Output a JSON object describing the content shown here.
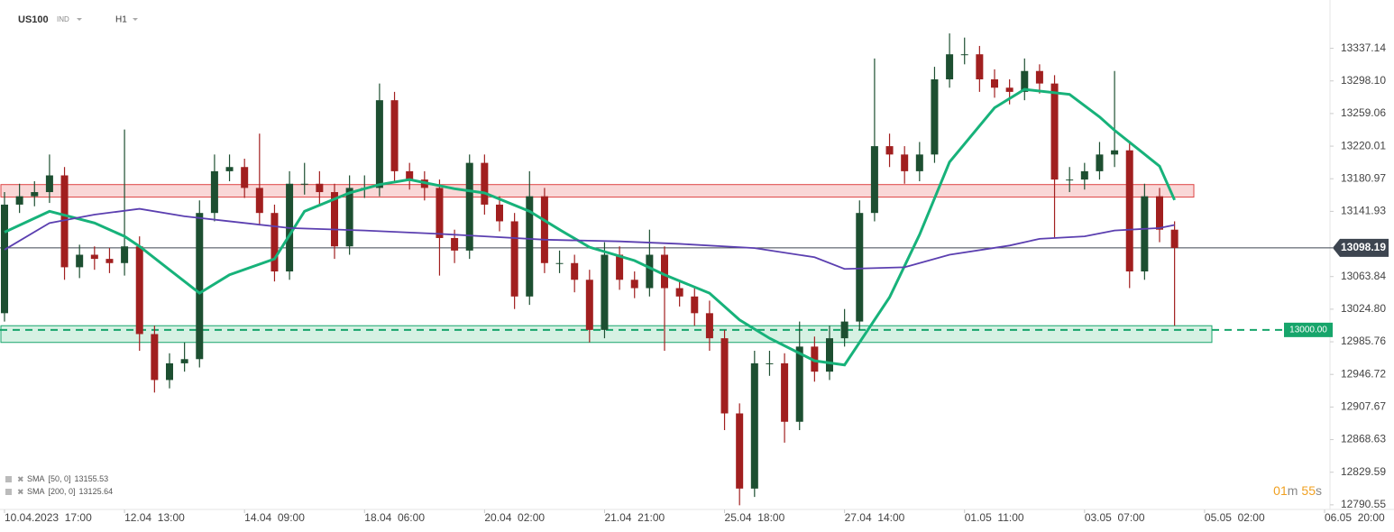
{
  "header": {
    "symbol": "US100",
    "market": "IND",
    "interval": "H1"
  },
  "chart_data": {
    "type": "candlestick",
    "candles": {
      "open": [
        13020,
        13150,
        13160,
        13165,
        13185,
        13075,
        13090,
        13085,
        13080,
        13100,
        12995,
        12940,
        12960,
        12965,
        13140,
        13190,
        13195,
        13170,
        13140,
        13070,
        13175,
        13175,
        13165,
        13100,
        13170,
        13170,
        13275,
        13190,
        13180,
        13170,
        13110,
        13095,
        13200,
        13150,
        13130,
        13040,
        13160,
        13080,
        13080,
        13060,
        13000,
        13090,
        13060,
        13050,
        13090,
        13050,
        13040,
        13020,
        12990,
        12900,
        12810,
        12960,
        12960,
        12890,
        12980,
        12950,
        12990,
        13010,
        13140,
        13220,
        13210,
        13190,
        13210,
        13300,
        13330,
        13330,
        13300,
        13290,
        13285,
        13310,
        13295,
        13180,
        13180,
        13190,
        13210,
        13215,
        13070,
        13160,
        13120
      ],
      "high": [
        13165,
        13175,
        13178,
        13210,
        13195,
        13102,
        13100,
        13098,
        13240,
        13112,
        13005,
        12972,
        12985,
        13155,
        13210,
        13210,
        13205,
        13235,
        13150,
        13190,
        13200,
        13190,
        13175,
        13185,
        13185,
        13295,
        13285,
        13200,
        13190,
        13180,
        13120,
        13210,
        13210,
        13160,
        13140,
        13190,
        13170,
        13095,
        13090,
        13072,
        13105,
        13100,
        13070,
        13120,
        13100,
        13060,
        13050,
        13035,
        13000,
        12912,
        12975,
        12975,
        12972,
        13010,
        12992,
        13005,
        13025,
        13155,
        13325,
        13235,
        13220,
        13225,
        13315,
        13355,
        13350,
        13340,
        13312,
        13300,
        13325,
        13318,
        13305,
        13195,
        13200,
        13225,
        13310,
        13225,
        13175,
        13170,
        13130
      ],
      "low": [
        13010,
        13140,
        13148,
        13152,
        13060,
        13062,
        13072,
        13068,
        13065,
        12975,
        12925,
        12930,
        12950,
        12955,
        13130,
        13178,
        13158,
        13125,
        13058,
        13060,
        13162,
        13150,
        13085,
        13090,
        13158,
        13160,
        13178,
        13168,
        13155,
        13065,
        13080,
        13085,
        13138,
        13118,
        13025,
        13030,
        13068,
        13068,
        13045,
        12985,
        12990,
        13048,
        13038,
        13040,
        12975,
        13028,
        13005,
        12975,
        12880,
        12790,
        12800,
        12945,
        12865,
        12880,
        12938,
        12940,
        12980,
        13000,
        13130,
        13195,
        13175,
        13178,
        13200,
        13290,
        13318,
        13285,
        13278,
        13270,
        13275,
        13283,
        13110,
        13165,
        13168,
        13180,
        13195,
        13050,
        13060,
        13105,
        13005
      ],
      "close": [
        13150,
        13160,
        13165,
        13185,
        13075,
        13090,
        13085,
        13080,
        13100,
        12995,
        12940,
        12960,
        12965,
        13140,
        13190,
        13195,
        13170,
        13140,
        13070,
        13175,
        13175,
        13165,
        13100,
        13170,
        13170,
        13275,
        13190,
        13180,
        13170,
        13110,
        13095,
        13200,
        13150,
        13130,
        13040,
        13160,
        13080,
        13080,
        13060,
        13000,
        13090,
        13060,
        13050,
        13090,
        13050,
        13040,
        13020,
        12990,
        12900,
        12810,
        12960,
        12960,
        12890,
        12980,
        12950,
        12990,
        13010,
        13140,
        13220,
        13210,
        13190,
        13210,
        13300,
        13330,
        13330,
        13300,
        13290,
        13285,
        13310,
        13295,
        13180,
        13180,
        13190,
        13210,
        13215,
        13070,
        13160,
        13120,
        13098.19
      ],
      "up_color": "#1d4f31",
      "down_color": "#a11f1f"
    },
    "indicators": [
      {
        "label": "SMA",
        "params": "[50, 0]",
        "value": 13155.53,
        "color": "#17b27a",
        "x": [
          0,
          3,
          6,
          8,
          9,
          11,
          13,
          15,
          18,
          20,
          23,
          25,
          27,
          30,
          32,
          35,
          37,
          39,
          42,
          44,
          47,
          49,
          51,
          54,
          56,
          59,
          61,
          63,
          66,
          68,
          71,
          73,
          74,
          77,
          78
        ],
        "values": [
          13117,
          13142,
          13128,
          13112,
          13100,
          13072,
          13044,
          13066,
          13085,
          13142,
          13164,
          13174,
          13180,
          13169,
          13164,
          13142,
          13120,
          13099,
          13083,
          13066,
          13044,
          13012,
          12990,
          12963,
          12958,
          13039,
          13114,
          13201,
          13266,
          13288,
          13282,
          13255,
          13239,
          13196,
          13155.53
        ]
      },
      {
        "label": "SMA",
        "params": "[200, 0]",
        "value": 13125.64,
        "color": "#5b3fb0",
        "x": [
          0,
          3,
          6,
          9,
          12,
          15,
          19,
          24,
          29,
          32,
          36,
          41,
          45,
          50,
          54,
          56,
          60,
          63,
          67,
          69,
          72,
          74,
          77,
          78
        ],
        "values": [
          13096,
          13128,
          13138,
          13145,
          13136,
          13130,
          13122,
          13119,
          13115,
          13112,
          13108,
          13106,
          13103,
          13098,
          13087,
          13073,
          13075,
          13090,
          13101,
          13109,
          13112,
          13119,
          13122,
          13125.64
        ]
      }
    ],
    "zones": [
      {
        "low": 13159,
        "high": 13174,
        "color": "#f4b6b6"
      },
      {
        "low": 12985,
        "high": 13005,
        "color": "#b5e6cc"
      }
    ],
    "level": {
      "value": 13000,
      "label": "13000.00",
      "color": "#17a56b"
    },
    "price_line": {
      "value": 13098.19,
      "color": "#3d4550"
    },
    "ylim": [
      12785,
      13395
    ],
    "yticks": [
      12790.55,
      12829.59,
      12868.63,
      12907.67,
      12946.72,
      12985.76,
      {
        "value": 13024.8,
        "label": "13024.80"
      },
      13063.84,
      13141.93,
      13180.97,
      13220.01,
      13259.06,
      {
        "value": 13298.1,
        "label": "13298.10"
      },
      13337.14
    ],
    "xlim": [
      0,
      88
    ],
    "xticks": [
      {
        "value": 0,
        "label": "10.04.2023  17:00"
      },
      {
        "value": 8,
        "label": "12.04  13:00"
      },
      {
        "value": 16,
        "label": "14.04  09:00"
      },
      {
        "value": 24,
        "label": "18.04  06:00"
      },
      {
        "value": 32,
        "label": "20.04  02:00"
      },
      {
        "value": 40,
        "label": "21.04  21:00"
      },
      {
        "value": 48,
        "label": "25.04  18:00"
      },
      {
        "value": 56,
        "label": "27.04  14:00"
      },
      {
        "value": 64,
        "label": "01.05  11:00"
      },
      {
        "value": 72,
        "label": "03.05  07:00"
      },
      {
        "value": 80,
        "label": "05.05  02:00"
      },
      {
        "value": 88,
        "label": "06.05  20:00"
      }
    ],
    "timer": [
      "01",
      "m",
      "55",
      "s"
    ]
  }
}
